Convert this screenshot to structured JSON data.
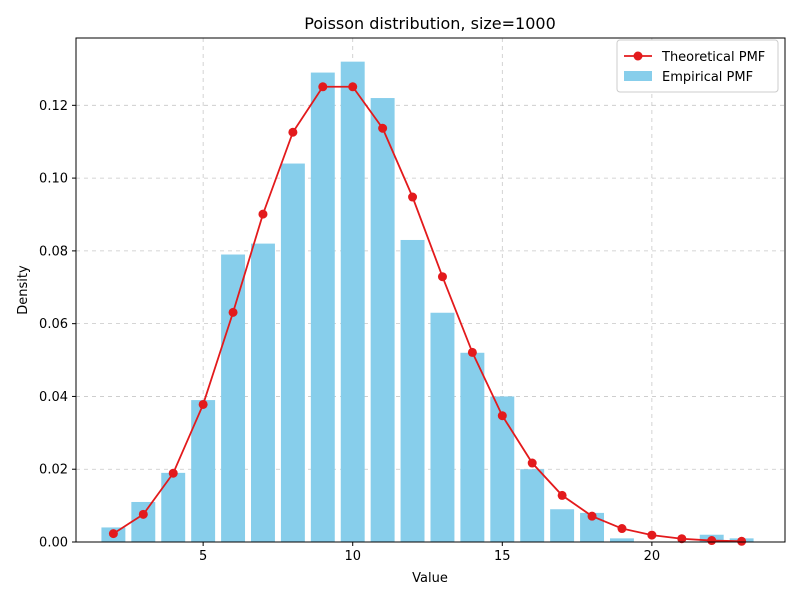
{
  "chart_data": {
    "type": "bar",
    "title": "Poisson distribution, size=1000",
    "xlabel": "Value",
    "ylabel": "Density",
    "xlim": [
      0.75,
      24.45
    ],
    "ylim": [
      0,
      0.1385
    ],
    "xticks": [
      5,
      10,
      15,
      20
    ],
    "yticks": [
      0.0,
      0.02,
      0.04,
      0.06,
      0.08,
      0.1,
      0.12
    ],
    "ytick_labels": [
      "0.00",
      "0.02",
      "0.04",
      "0.06",
      "0.08",
      "0.10",
      "0.12"
    ],
    "grid": true,
    "legend_position": "top-right",
    "series": [
      {
        "name": "Empirical PMF",
        "type": "bar",
        "color": "#87CEEB",
        "x": [
          2,
          3,
          4,
          5,
          6,
          7,
          8,
          9,
          10,
          11,
          12,
          13,
          14,
          15,
          16,
          17,
          18,
          19,
          22,
          23
        ],
        "values": [
          0.004,
          0.011,
          0.019,
          0.039,
          0.079,
          0.082,
          0.104,
          0.129,
          0.132,
          0.122,
          0.083,
          0.063,
          0.052,
          0.04,
          0.02,
          0.009,
          0.008,
          0.001,
          0.002,
          0.001
        ]
      },
      {
        "name": "Theoretical PMF",
        "type": "line",
        "color": "#e31a1c",
        "x": [
          2,
          3,
          4,
          5,
          6,
          7,
          8,
          9,
          10,
          11,
          12,
          13,
          14,
          15,
          16,
          17,
          18,
          19,
          20,
          21,
          22,
          23
        ],
        "values": [
          0.0023,
          0.0076,
          0.0189,
          0.0378,
          0.0631,
          0.0901,
          0.1126,
          0.1251,
          0.1251,
          0.1137,
          0.0948,
          0.0729,
          0.0521,
          0.0347,
          0.0217,
          0.0128,
          0.0071,
          0.0037,
          0.0019,
          0.0009,
          0.0004,
          0.0002
        ]
      }
    ]
  }
}
